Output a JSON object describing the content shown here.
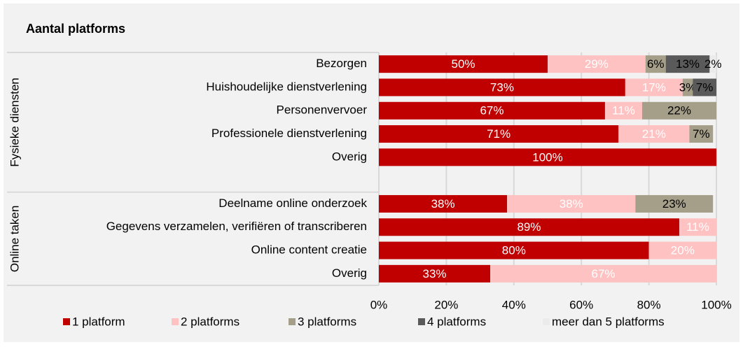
{
  "chart_data": {
    "type": "stacked-barh",
    "title": "Aantal platforms",
    "categories": [
      "Bezorgen",
      "Huishoudelijke dienstverlening",
      "Personenvervoer",
      "Professionele dienstverlening",
      "Overig",
      null,
      "Deelname online onderzoek",
      "Gegevens verzamelen, verifiëren of transcriberen",
      "Online content creatie",
      "Overig"
    ],
    "groups": [
      {
        "label": "Fysieke diensten",
        "count": 6
      },
      {
        "label": "Online taken",
        "count": 4
      }
    ],
    "series": [
      {
        "name": "1 platform",
        "color": "#c00000",
        "label_color": "#ffffff",
        "values": [
          50,
          73,
          67,
          71,
          100,
          null,
          38,
          89,
          80,
          33
        ],
        "value_labels": [
          "50%",
          "73%",
          "67%",
          "71%",
          "100%",
          null,
          "38%",
          "89%",
          "80%",
          "33%"
        ]
      },
      {
        "name": "2 platforms",
        "color": "#ffc2c2",
        "label_color": "#ffffff",
        "values": [
          29,
          17,
          11,
          21,
          null,
          null,
          38,
          11,
          20,
          67
        ],
        "value_labels": [
          "29%",
          "17%",
          "11%",
          "21%",
          null,
          null,
          "38%",
          "11%",
          "20%",
          "67%"
        ]
      },
      {
        "name": "3 platforms",
        "color": "#a59f8a",
        "label_color": "#000000",
        "values": [
          6,
          3,
          22,
          7,
          null,
          null,
          23,
          null,
          null,
          null
        ],
        "value_labels": [
          "6%",
          "3%",
          "22%",
          "7%",
          null,
          null,
          "23%",
          null,
          null,
          null
        ]
      },
      {
        "name": "4 platforms",
        "color": "#5a5a5a",
        "label_color": "#000000",
        "values": [
          13,
          7,
          null,
          null,
          null,
          null,
          null,
          null,
          null,
          null
        ],
        "value_labels": [
          "13%",
          "7%",
          null,
          null,
          null,
          null,
          null,
          null,
          null,
          null
        ]
      },
      {
        "name": "meer dan 5 platforms",
        "color": "#ebebeb",
        "label_color": "#000000",
        "values": [
          2,
          null,
          null,
          null,
          null,
          null,
          null,
          null,
          null,
          null
        ],
        "value_labels": [
          "2%",
          null,
          null,
          null,
          null,
          null,
          null,
          null,
          null,
          null
        ]
      }
    ],
    "xlim": [
      0,
      100
    ],
    "xticks": [
      {
        "value": 0,
        "label": "0%"
      },
      {
        "value": 20,
        "label": "20%"
      },
      {
        "value": 40,
        "label": "40%"
      },
      {
        "value": 60,
        "label": "60%"
      },
      {
        "value": 80,
        "label": "80%"
      },
      {
        "value": 100,
        "label": "100%"
      }
    ],
    "grid": true,
    "legend": "bottom"
  }
}
